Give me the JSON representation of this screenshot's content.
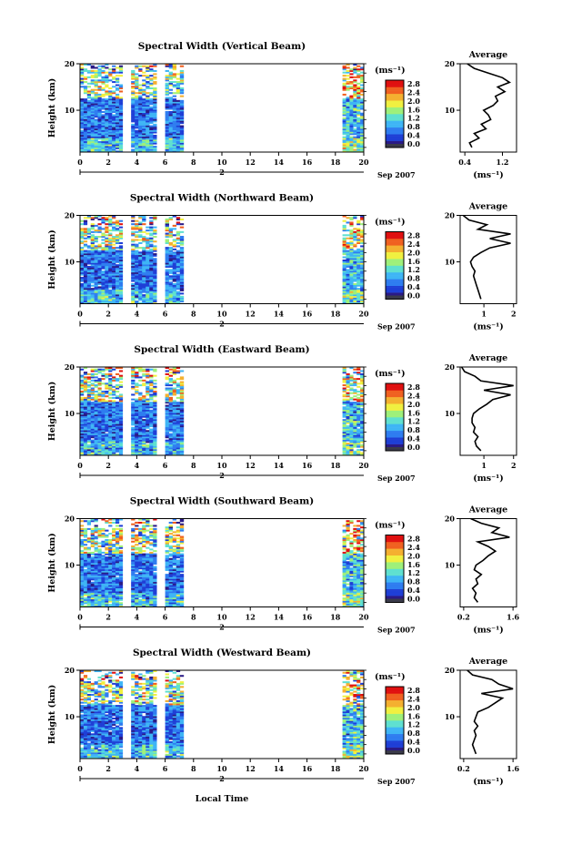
{
  "figure": {
    "xlabel": "Local Time",
    "date_label": "Sep 2007",
    "day_label": "2",
    "colorbar_unit": "(ms⁻¹)",
    "colorbar_ticks": [
      "2.8",
      "2.4",
      "2.0",
      "1.6",
      "1.2",
      "0.8",
      "0.4",
      "0.0"
    ],
    "avg_title": "Average",
    "avg_unit": "(ms⁻¹)",
    "ylabel": "Height (km)",
    "colors": {
      "scale": [
        "#2a1a86",
        "#1f3fd6",
        "#2f7df0",
        "#3fb5f5",
        "#5fe0d0",
        "#9ef07a",
        "#f0f040",
        "#f4b030",
        "#f06020",
        "#e01010"
      ],
      "zero": "#3a3a4a"
    }
  },
  "chart_data": [
    {
      "type": "heatmap",
      "title": "Spectral Width (Vertical Beam)",
      "x_ticks": [
        "0",
        "2",
        "4",
        "6",
        "8",
        "10",
        "12",
        "14",
        "16",
        "18",
        "20"
      ],
      "xlim": [
        0,
        20
      ],
      "y_ticks": [
        "20",
        "10"
      ],
      "ylim": [
        1,
        20
      ],
      "data_blocks_hours": [
        [
          0,
          3.0
        ],
        [
          3.6,
          5.4
        ],
        [
          6.0,
          7.3
        ],
        [
          18.5,
          20
        ]
      ],
      "noise_top_km": 18.5,
      "colorscale_range": [
        0.0,
        3.0
      ],
      "average_profile": {
        "x_ticks": [
          "0.4",
          "1.2"
        ],
        "xlim": [
          0.3,
          1.5
        ],
        "height_km": [
          2,
          3,
          4,
          5,
          6,
          7,
          8,
          9,
          10,
          11,
          12,
          13,
          14,
          15,
          16,
          17,
          18,
          19,
          20
        ],
        "width": [
          0.55,
          0.5,
          0.7,
          0.6,
          0.85,
          0.75,
          0.95,
          0.9,
          0.8,
          1.0,
          1.1,
          1.05,
          1.25,
          1.1,
          1.35,
          1.2,
          0.9,
          0.6,
          0.45
        ]
      }
    },
    {
      "type": "heatmap",
      "title": "Spectral Width (Northward Beam)",
      "x_ticks": [
        "0",
        "2",
        "4",
        "6",
        "8",
        "10",
        "12",
        "14",
        "16",
        "18",
        "20"
      ],
      "xlim": [
        0,
        20
      ],
      "y_ticks": [
        "20",
        "10"
      ],
      "ylim": [
        1,
        20
      ],
      "data_blocks_hours": [
        [
          0,
          3.0
        ],
        [
          3.6,
          5.4
        ],
        [
          6.0,
          7.3
        ],
        [
          18.5,
          20
        ]
      ],
      "noise_top_km": 17.5,
      "colorscale_range": [
        0.0,
        3.0
      ],
      "average_profile": {
        "x_ticks": [
          "1",
          "2"
        ],
        "xlim": [
          0.2,
          2.1
        ],
        "height_km": [
          2,
          3,
          4,
          5,
          6,
          7,
          8,
          9,
          10,
          11,
          12,
          13,
          14,
          15,
          16,
          17,
          18,
          19,
          20
        ],
        "width": [
          0.9,
          0.85,
          0.8,
          0.75,
          0.7,
          0.65,
          0.7,
          0.6,
          0.55,
          0.65,
          0.9,
          1.2,
          1.9,
          1.2,
          1.9,
          0.8,
          1.1,
          0.5,
          0.3
        ]
      }
    },
    {
      "type": "heatmap",
      "title": "Spectral Width (Eastward Beam)",
      "x_ticks": [
        "0",
        "2",
        "4",
        "6",
        "8",
        "10",
        "12",
        "14",
        "16",
        "18",
        "20"
      ],
      "xlim": [
        0,
        20
      ],
      "y_ticks": [
        "20",
        "10"
      ],
      "ylim": [
        1,
        20
      ],
      "data_blocks_hours": [
        [
          0,
          3.0
        ],
        [
          3.6,
          5.4
        ],
        [
          6.0,
          7.3
        ],
        [
          18.5,
          20
        ]
      ],
      "noise_top_km": 17.5,
      "colorscale_range": [
        0.0,
        3.0
      ],
      "average_profile": {
        "x_ticks": [
          "1",
          "2"
        ],
        "xlim": [
          0.2,
          2.1
        ],
        "height_km": [
          2,
          3,
          4,
          5,
          6,
          7,
          8,
          9,
          10,
          11,
          12,
          13,
          14,
          15,
          16,
          17,
          18,
          19,
          20
        ],
        "width": [
          0.9,
          0.75,
          0.7,
          0.8,
          0.65,
          0.7,
          0.6,
          0.6,
          0.65,
          0.85,
          1.1,
          1.3,
          1.9,
          1.0,
          2.0,
          0.9,
          0.7,
          0.35,
          0.25
        ]
      }
    },
    {
      "type": "heatmap",
      "title": "Spectral Width (Southward Beam)",
      "x_ticks": [
        "0",
        "2",
        "4",
        "6",
        "8",
        "10",
        "12",
        "14",
        "16",
        "18",
        "20"
      ],
      "xlim": [
        0,
        20
      ],
      "y_ticks": [
        "20",
        "10"
      ],
      "ylim": [
        1,
        20
      ],
      "data_blocks_hours": [
        [
          0,
          3.0
        ],
        [
          3.6,
          5.4
        ],
        [
          6.0,
          7.3
        ],
        [
          18.5,
          20
        ]
      ],
      "noise_top_km": 18.0,
      "colorscale_range": [
        0.0,
        3.0
      ],
      "average_profile": {
        "x_ticks": [
          "0.2",
          "1.6"
        ],
        "xlim": [
          0.1,
          1.7
        ],
        "height_km": [
          2,
          3,
          4,
          5,
          6,
          7,
          8,
          9,
          10,
          11,
          12,
          13,
          14,
          15,
          16,
          17,
          18,
          19,
          20
        ],
        "width": [
          0.6,
          0.5,
          0.55,
          0.45,
          0.6,
          0.55,
          0.7,
          0.5,
          0.55,
          0.75,
          0.9,
          1.1,
          0.9,
          0.6,
          1.5,
          1.0,
          1.2,
          0.7,
          0.4
        ]
      }
    },
    {
      "type": "heatmap",
      "title": "Spectral Width (Westward Beam)",
      "x_ticks": [
        "0",
        "2",
        "4",
        "6",
        "8",
        "10",
        "12",
        "14",
        "16",
        "18",
        "20"
      ],
      "xlim": [
        0,
        20
      ],
      "y_ticks": [
        "20",
        "10"
      ],
      "ylim": [
        1,
        20
      ],
      "data_blocks_hours": [
        [
          0,
          3.0
        ],
        [
          3.6,
          5.4
        ],
        [
          6.0,
          7.3
        ],
        [
          18.5,
          20
        ]
      ],
      "noise_top_km": 17.5,
      "colorscale_range": [
        0.0,
        3.0
      ],
      "average_profile": {
        "x_ticks": [
          "0.2",
          "1.6"
        ],
        "xlim": [
          0.1,
          1.7
        ],
        "height_km": [
          2,
          3,
          4,
          5,
          6,
          7,
          8,
          9,
          10,
          11,
          12,
          13,
          14,
          15,
          16,
          17,
          18,
          19,
          20
        ],
        "width": [
          0.55,
          0.5,
          0.45,
          0.5,
          0.55,
          0.5,
          0.6,
          0.5,
          0.55,
          0.6,
          0.9,
          1.1,
          1.3,
          0.7,
          1.6,
          1.2,
          1.0,
          0.45,
          0.3
        ]
      }
    }
  ]
}
